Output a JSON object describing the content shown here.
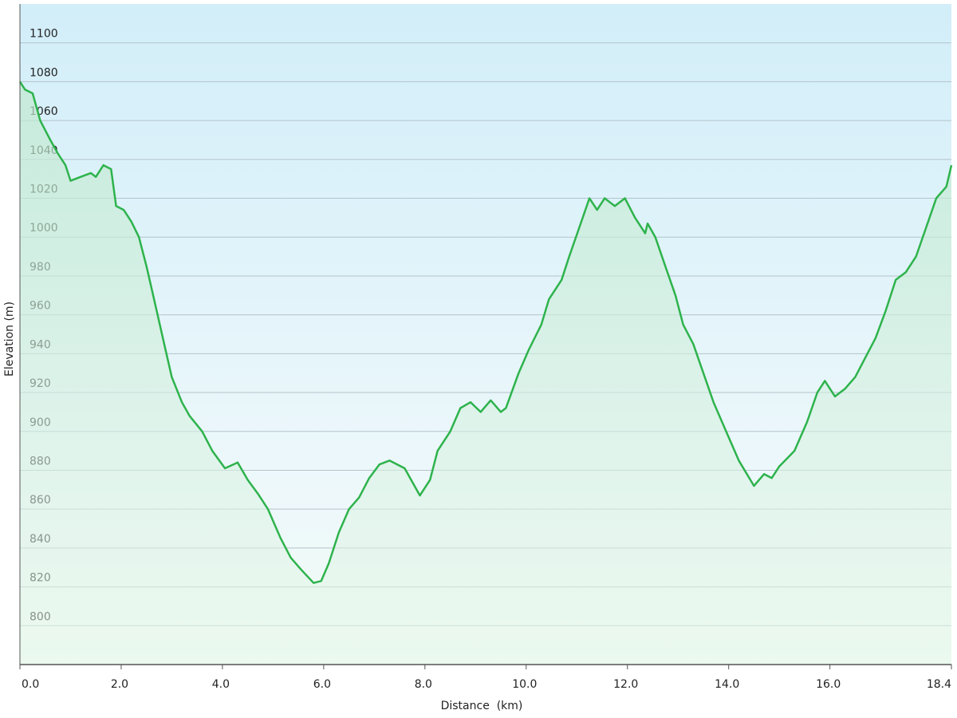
{
  "chart_data": {
    "type": "area",
    "xlabel": "Distance  (km)",
    "ylabel": "Elevation (m)",
    "x": [
      0,
      0.1,
      0.25,
      0.4,
      0.6,
      0.75,
      0.9,
      1.0,
      1.2,
      1.4,
      1.5,
      1.65,
      1.8,
      1.9,
      2.05,
      2.2,
      2.35,
      2.5,
      2.65,
      2.85,
      3.0,
      3.2,
      3.35,
      3.6,
      3.8,
      4.05,
      4.3,
      4.5,
      4.7,
      4.9,
      5.15,
      5.35,
      5.55,
      5.8,
      5.95,
      6.1,
      6.3,
      6.5,
      6.7,
      6.9,
      7.1,
      7.3,
      7.6,
      7.9,
      8.1,
      8.25,
      8.5,
      8.7,
      8.9,
      9.1,
      9.3,
      9.5,
      9.6,
      9.85,
      10.05,
      10.3,
      10.45,
      10.7,
      10.85,
      11.05,
      11.25,
      11.4,
      11.55,
      11.75,
      11.95,
      12.15,
      12.35,
      12.4,
      12.55,
      12.75,
      12.95,
      13.1,
      13.3,
      13.5,
      13.7,
      13.95,
      14.2,
      14.5,
      14.7,
      14.85,
      15.0,
      15.3,
      15.55,
      15.75,
      15.9,
      16.1,
      16.3,
      16.5,
      16.7,
      16.9,
      17.1,
      17.3,
      17.5,
      17.7,
      17.9,
      18.1,
      18.3,
      18.4
    ],
    "values": [
      1080,
      1076,
      1074,
      1060,
      1050,
      1043,
      1037,
      1029,
      1031,
      1033,
      1031,
      1037,
      1035,
      1016,
      1014,
      1008,
      1000,
      985,
      968,
      945,
      928,
      915,
      908,
      900,
      890,
      881,
      884,
      875,
      868,
      860,
      845,
      835,
      829,
      822,
      823,
      832,
      848,
      860,
      866,
      876,
      883,
      885,
      881,
      867,
      875,
      890,
      900,
      912,
      915,
      910,
      916,
      910,
      912,
      930,
      942,
      955,
      968,
      978,
      990,
      1005,
      1020,
      1014,
      1020,
      1016,
      1020,
      1010,
      1002,
      1007,
      1000,
      985,
      970,
      955,
      945,
      930,
      915,
      900,
      885,
      872,
      878,
      876,
      882,
      890,
      905,
      920,
      926,
      918,
      922,
      928,
      938,
      948,
      962,
      978,
      982,
      990,
      1005,
      1020,
      1026,
      1037
    ],
    "color": "#2eb34c",
    "xlim": [
      0,
      18.4
    ],
    "ylim": [
      780,
      1120
    ],
    "xticks": [
      {
        "value": 0,
        "label": "0.0"
      },
      {
        "value": 2,
        "label": "2.0"
      },
      {
        "value": 4,
        "label": "4.0"
      },
      {
        "value": 6,
        "label": "6.0"
      },
      {
        "value": 8,
        "label": "8.0"
      },
      {
        "value": 10,
        "label": "10.0"
      },
      {
        "value": 12,
        "label": "12.0"
      },
      {
        "value": 14,
        "label": "14.0"
      },
      {
        "value": 16,
        "label": "16.0"
      },
      18.4
    ],
    "yticks": [
      800,
      820,
      840,
      860,
      880,
      900,
      920,
      940,
      960,
      980,
      1000,
      1020,
      1040,
      1060,
      1080,
      1100
    ],
    "grid": true
  }
}
